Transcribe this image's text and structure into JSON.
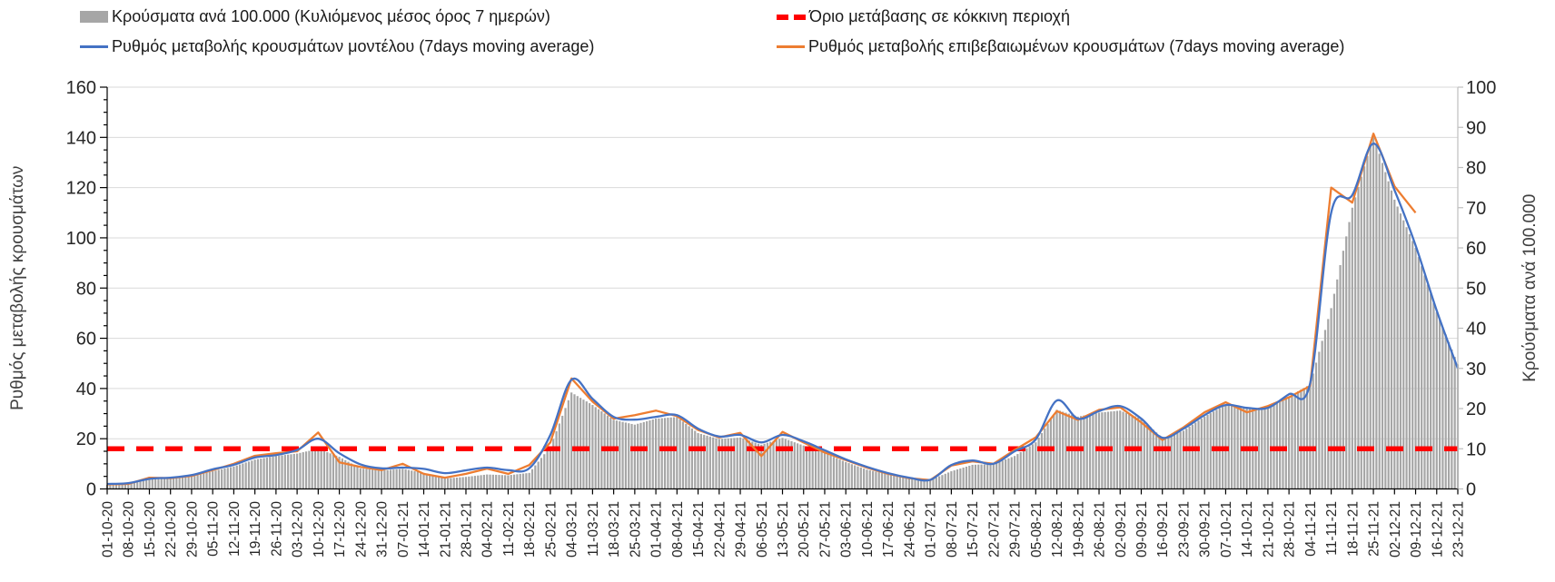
{
  "chart_data": {
    "type": "bar+line combo (dual axis)",
    "x": [
      "01-10-20",
      "08-10-20",
      "15-10-20",
      "22-10-20",
      "29-10-20",
      "05-11-20",
      "12-11-20",
      "19-11-20",
      "26-11-20",
      "03-12-20",
      "10-12-20",
      "17-12-20",
      "24-12-20",
      "31-12-20",
      "07-01-21",
      "14-01-21",
      "21-01-21",
      "28-01-21",
      "04-02-21",
      "11-02-21",
      "18-02-21",
      "25-02-21",
      "04-03-21",
      "11-03-21",
      "18-03-21",
      "25-03-21",
      "01-04-21",
      "08-04-21",
      "15-04-21",
      "22-04-21",
      "29-04-21",
      "06-05-21",
      "13-05-21",
      "20-05-21",
      "27-05-21",
      "03-06-21",
      "10-06-21",
      "17-06-21",
      "24-06-21",
      "01-07-21",
      "08-07-21",
      "15-07-21",
      "22-07-21",
      "29-07-21",
      "05-08-21",
      "12-08-21",
      "19-08-21",
      "26-08-21",
      "02-09-21",
      "09-09-21",
      "16-09-21",
      "23-09-21",
      "30-09-21",
      "07-10-21",
      "14-10-21",
      "21-10-21",
      "28-10-21",
      "04-11-21",
      "11-11-21",
      "18-11-21",
      "25-11-21",
      "02-12-21",
      "09-12-21",
      "16-12-21",
      "23-12-21"
    ],
    "series": [
      {
        "name": "Κρούσματα ανά 100.000 (Κυλιόμενος μέσος όρος 7 ημερών)",
        "type": "bar",
        "axis": "right",
        "color": "#a6a6a6",
        "values": [
          1.0,
          1.2,
          3.0,
          2.8,
          3.2,
          4.4,
          5.6,
          7.3,
          8.2,
          8.8,
          10.0,
          8.0,
          5.1,
          4.6,
          5.0,
          4.0,
          2.6,
          3.0,
          3.6,
          3.4,
          4.0,
          10.5,
          24.0,
          20.9,
          17.2,
          16.0,
          17.5,
          17.9,
          13.9,
          12.4,
          12.8,
          11.0,
          12.7,
          10.8,
          8.9,
          6.7,
          4.8,
          3.7,
          2.8,
          2.2,
          4.4,
          6.0,
          6.2,
          8.2,
          11.6,
          19.7,
          18.0,
          19.0,
          19.5,
          17.5,
          12.7,
          14.5,
          18.0,
          21.0,
          20.0,
          20.4,
          23.0,
          26.0,
          45.0,
          70.0,
          88.0,
          72.0,
          60.0,
          44.0,
          31.0
        ]
      },
      {
        "name": "Ρυθμός μεταβολής κρουσμάτων μοντέλου (7days moving average)",
        "type": "line",
        "axis": "left",
        "color": "#4472c4",
        "values": [
          2.0,
          2.3,
          4.0,
          4.5,
          5.5,
          7.8,
          9.6,
          12.5,
          13.5,
          15.5,
          20.0,
          14.2,
          9.8,
          8.2,
          8.5,
          8.0,
          6.3,
          7.4,
          8.5,
          7.5,
          8.2,
          21.5,
          43.5,
          35.9,
          28.7,
          27.6,
          28.7,
          29.4,
          24.0,
          20.9,
          21.5,
          18.5,
          21.5,
          19.0,
          15.4,
          11.8,
          8.8,
          6.3,
          4.5,
          3.6,
          9.5,
          11.3,
          10.0,
          15.0,
          19.7,
          35.2,
          28.0,
          31.0,
          33.0,
          28.0,
          20.4,
          24.0,
          29.4,
          33.4,
          32.3,
          32.3,
          37.7,
          42.0,
          110.0,
          117.0,
          137.5,
          119.0,
          97.0,
          71.0,
          48.0
        ]
      },
      {
        "name": "Ρυθμός μεταβολής επιβεβαιωμένων κρουσμάτων (7days moving average)",
        "type": "line",
        "axis": "left",
        "color": "#ed7d31",
        "values": [
          1.8,
          2.0,
          4.5,
          4.3,
          5.2,
          7.5,
          10.0,
          13.2,
          14.2,
          15.0,
          22.5,
          10.6,
          8.8,
          7.5,
          10.0,
          6.0,
          4.5,
          6.0,
          8.1,
          6.0,
          9.5,
          18.5,
          44.0,
          34.8,
          28.0,
          29.4,
          31.2,
          29.0,
          23.5,
          20.5,
          22.3,
          13.1,
          22.7,
          18.5,
          14.5,
          11.5,
          8.5,
          6.0,
          4.3,
          3.5,
          9.3,
          11.0,
          10.0,
          15.5,
          20.5,
          31.0,
          27.5,
          31.5,
          32.5,
          26.5,
          19.5,
          24.5,
          30.5,
          34.5,
          30.5,
          33.0,
          36.5,
          41.0,
          120.0,
          114.0,
          141.5,
          120.5,
          110.0,
          null,
          null
        ]
      },
      {
        "name": "Όριο μετάβασης σε κόκκινη περιοχή",
        "type": "threshold",
        "axis": "right",
        "color": "#ff0000",
        "value": 10
      }
    ],
    "left_axis": {
      "label": "Ρυθμός μεταβολής κρουσμάτων",
      "min": 0,
      "max": 160,
      "step": 20,
      "ticks": [
        "0",
        "20",
        "40",
        "60",
        "80",
        "100",
        "120",
        "140",
        "160"
      ]
    },
    "right_axis": {
      "label": "Κρούσματα ανά 100.000",
      "min": 0,
      "max": 100,
      "step": 10,
      "ticks": [
        "0",
        "10",
        "20",
        "30",
        "40",
        "50",
        "60",
        "70",
        "80",
        "90",
        "100"
      ]
    },
    "grid": "horizontal",
    "legend_position": "top"
  }
}
